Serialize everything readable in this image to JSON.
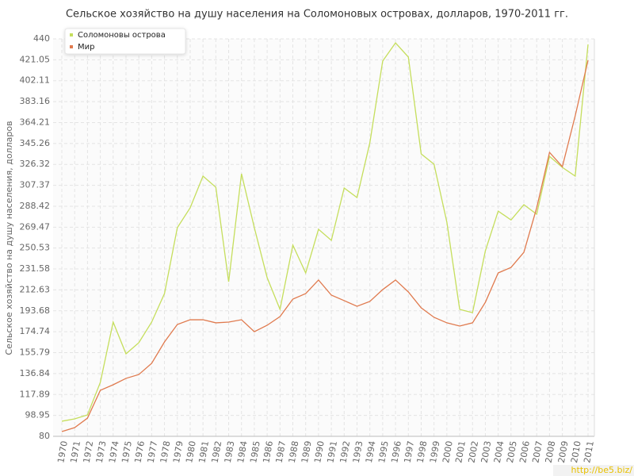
{
  "chart_data": {
    "type": "line",
    "title": "Сельское хозяйство на душу населения на Соломоновых островах, долларов, 1970-2011 гг.",
    "y_label": "Сельское хозяйство на душу населения, долларов",
    "watermark": "http://be5.biz/",
    "categories": [
      "1970",
      "1971",
      "1972",
      "1973",
      "1974",
      "1975",
      "1976",
      "1977",
      "1978",
      "1979",
      "1980",
      "1981",
      "1982",
      "1983",
      "1984",
      "1985",
      "1986",
      "1987",
      "1988",
      "1989",
      "1990",
      "1991",
      "1992",
      "1993",
      "1994",
      "1995",
      "1996",
      "1997",
      "1998",
      "1999",
      "2000",
      "2001",
      "2002",
      "2003",
      "2004",
      "2005",
      "2006",
      "2007",
      "2008",
      "2009",
      "2010",
      "2011"
    ],
    "series": [
      {
        "name": "Соломоновы острова",
        "color": "#c5de5c",
        "values": [
          93.7,
          95.8,
          99.4,
          128.9,
          183.5,
          154.7,
          164.8,
          183.5,
          209.3,
          269,
          287,
          315.7,
          305.6,
          220,
          317.8,
          269,
          223.7,
          195,
          253.2,
          228,
          267.5,
          257.5,
          304.9,
          296.3,
          345.9,
          419.9,
          436.4,
          423.5,
          335.8,
          326.5,
          274,
          195,
          192,
          248,
          284,
          276,
          289.8,
          281.2,
          333.6,
          323.6,
          315.7,
          435
        ]
      },
      {
        "name": "Мир",
        "color": "#e07a4e",
        "values": [
          84.3,
          87.9,
          96.5,
          121.7,
          126.7,
          132.5,
          136,
          146.1,
          165.5,
          181.3,
          185.6,
          185.6,
          182.8,
          183.5,
          185.6,
          174.8,
          180.6,
          188.5,
          204.3,
          209.3,
          221.6,
          207.9,
          202.9,
          197.8,
          202.2,
          212.9,
          221.6,
          210.8,
          196.4,
          187.8,
          182.8,
          179.9,
          182.8,
          201.4,
          228,
          233,
          246.7,
          287,
          337.2,
          324.3,
          370.3,
          420.6
        ]
      }
    ],
    "ylim": [
      80,
      440
    ],
    "yticks": [
      80,
      98.95,
      117.89,
      136.84,
      155.79,
      174.74,
      193.68,
      212.63,
      231.58,
      250.53,
      269.47,
      288.42,
      307.37,
      326.32,
      345.26,
      364.21,
      383.16,
      402.11,
      421.05,
      440
    ],
    "grid": true,
    "legend": "top-left"
  }
}
